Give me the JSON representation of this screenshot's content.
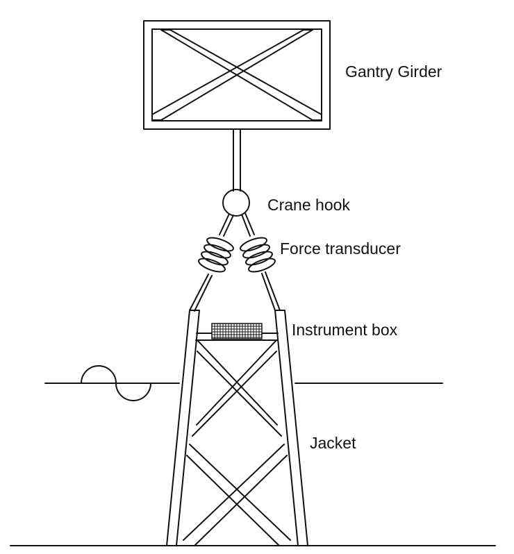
{
  "labels": {
    "gantry_girder": "Gantry Girder",
    "crane_hook": "Crane hook",
    "force_transducer": "Force transducer",
    "instrument_box": "Instrument box",
    "jacket": "Jacket"
  },
  "colors": {
    "line": "#111111",
    "background": "#ffffff"
  }
}
